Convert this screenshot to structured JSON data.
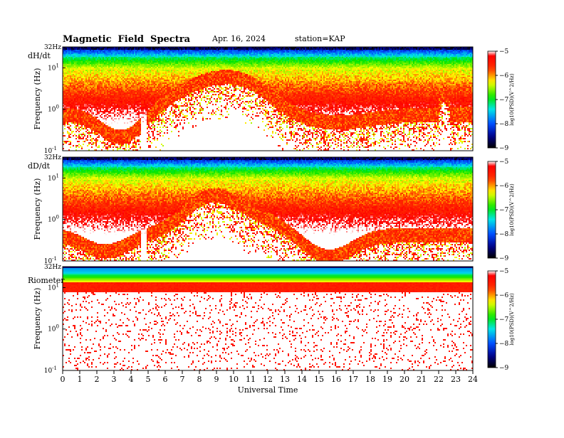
{
  "header": {
    "title": "Magnetic  Field  Spectra",
    "date": "Apr. 16, 2024",
    "station": "station=KAP"
  },
  "chart_data": [
    {
      "type": "heatmap",
      "panel_label": "dH/dt",
      "ylabel": "Frequency  (Hz)",
      "ytick_labels": [
        "32Hz",
        "10^1",
        "10^0",
        "10^-1"
      ],
      "yscale": "log",
      "ylim": [
        0.1,
        32
      ],
      "xlim": [
        0,
        24
      ],
      "colorbar": {
        "label": "log10(PSD)(V^2/Hz)",
        "ticks": [
          -5,
          -6,
          -7,
          -8,
          -9
        ],
        "range": [
          -9,
          -5
        ]
      },
      "profile": "dh"
    },
    {
      "type": "heatmap",
      "panel_label": "dD/dt",
      "ylabel": "Frequency  (Hz)",
      "ytick_labels": [
        "32Hz",
        "10^1",
        "10^0",
        "10^-1"
      ],
      "yscale": "log",
      "ylim": [
        0.1,
        32
      ],
      "xlim": [
        0,
        24
      ],
      "colorbar": {
        "label": "log10(PSD)(V^2/Hz)",
        "ticks": [
          -5,
          -6,
          -7,
          -8,
          -9
        ],
        "range": [
          -9,
          -5
        ]
      },
      "profile": "dd"
    },
    {
      "type": "heatmap",
      "panel_label": "Riometer",
      "ylabel": "Frequency  (Hz)",
      "ytick_labels": [
        "32Hz",
        "10^1",
        "10^0",
        "10^-1"
      ],
      "yscale": "log",
      "ylim": [
        0.1,
        32
      ],
      "xlim": [
        0,
        24
      ],
      "colorbar": {
        "label": "log10(PSD)(V^2/Hz)",
        "ticks": [
          -5,
          -6,
          -7,
          -8,
          -9
        ],
        "range": [
          -9,
          -5
        ]
      },
      "profile": "rio"
    }
  ],
  "xaxis": {
    "label": "Universal Time",
    "ticks": [
      "0",
      "1",
      "2",
      "3",
      "4",
      "5",
      "6",
      "7",
      "8",
      "9",
      "10",
      "11",
      "12",
      "13",
      "14",
      "15",
      "16",
      "17",
      "18",
      "19",
      "20",
      "21",
      "22",
      "23",
      "24"
    ]
  },
  "colors": {
    "scale": [
      "#000000",
      "#00008c",
      "#0050ff",
      "#00e6e6",
      "#00e600",
      "#ffff00",
      "#ff3000",
      "#ff0000",
      "#ffffff"
    ]
  }
}
